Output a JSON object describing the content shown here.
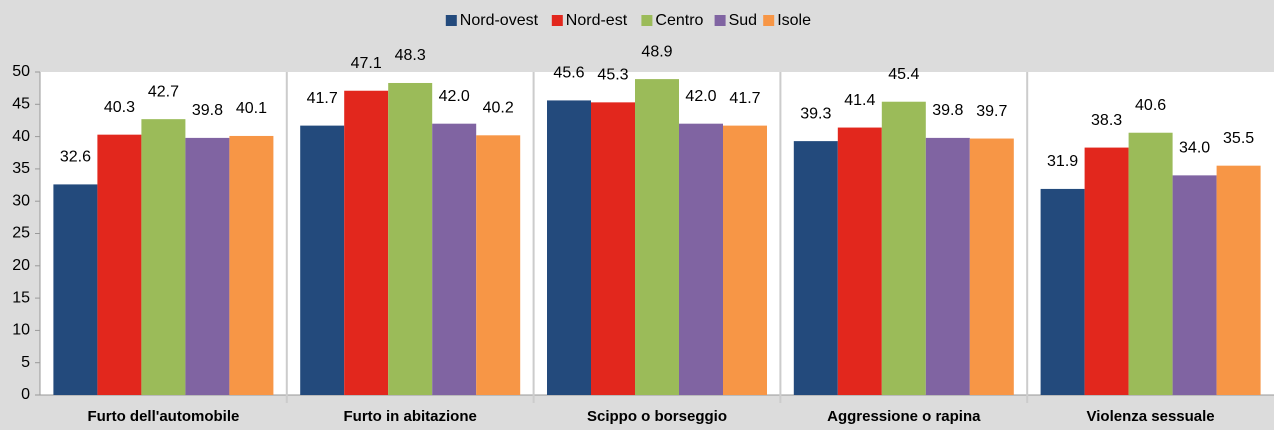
{
  "chart_data": {
    "type": "bar",
    "categories": [
      "Furto dell'automobile",
      "Furto in abitazione",
      "Scippo o borseggio",
      "Aggressione o rapina",
      "Violenza sessuale"
    ],
    "series": [
      {
        "name": "Nord-ovest",
        "color": "#234a7c",
        "values": [
          32.6,
          41.7,
          45.6,
          39.3,
          31.9
        ],
        "value_labels": [
          "32.6",
          "41.7",
          "45.6",
          "39.3",
          "31.9"
        ]
      },
      {
        "name": "Nord-est",
        "color": "#e2271d",
        "values": [
          40.3,
          47.1,
          45.3,
          41.4,
          38.3
        ],
        "value_labels": [
          "40.3",
          "47.1",
          "45.3",
          "41.4",
          "38.3"
        ]
      },
      {
        "name": "Centro",
        "color": "#9bbb59",
        "values": [
          42.7,
          48.3,
          48.9,
          45.4,
          40.6
        ],
        "value_labels": [
          "42.7",
          "48.3",
          "48.9",
          "45.4",
          "40.6"
        ]
      },
      {
        "name": "Sud",
        "color": "#8064a2",
        "values": [
          39.8,
          42.0,
          42.0,
          39.8,
          34.0
        ],
        "value_labels": [
          "39.8",
          "42.0",
          "42.0",
          "39.8",
          "34.0"
        ]
      },
      {
        "name": "Isole",
        "color": "#f79646",
        "values": [
          40.1,
          40.2,
          41.7,
          39.7,
          35.5
        ],
        "value_labels": [
          "40.1",
          "40.2",
          "41.7",
          "39.7",
          "35.5"
        ]
      }
    ],
    "ylim": [
      0,
      50
    ],
    "yticks": [
      0,
      5,
      10,
      15,
      20,
      25,
      30,
      35,
      40,
      45,
      50
    ],
    "grid": false,
    "legend": "top"
  }
}
